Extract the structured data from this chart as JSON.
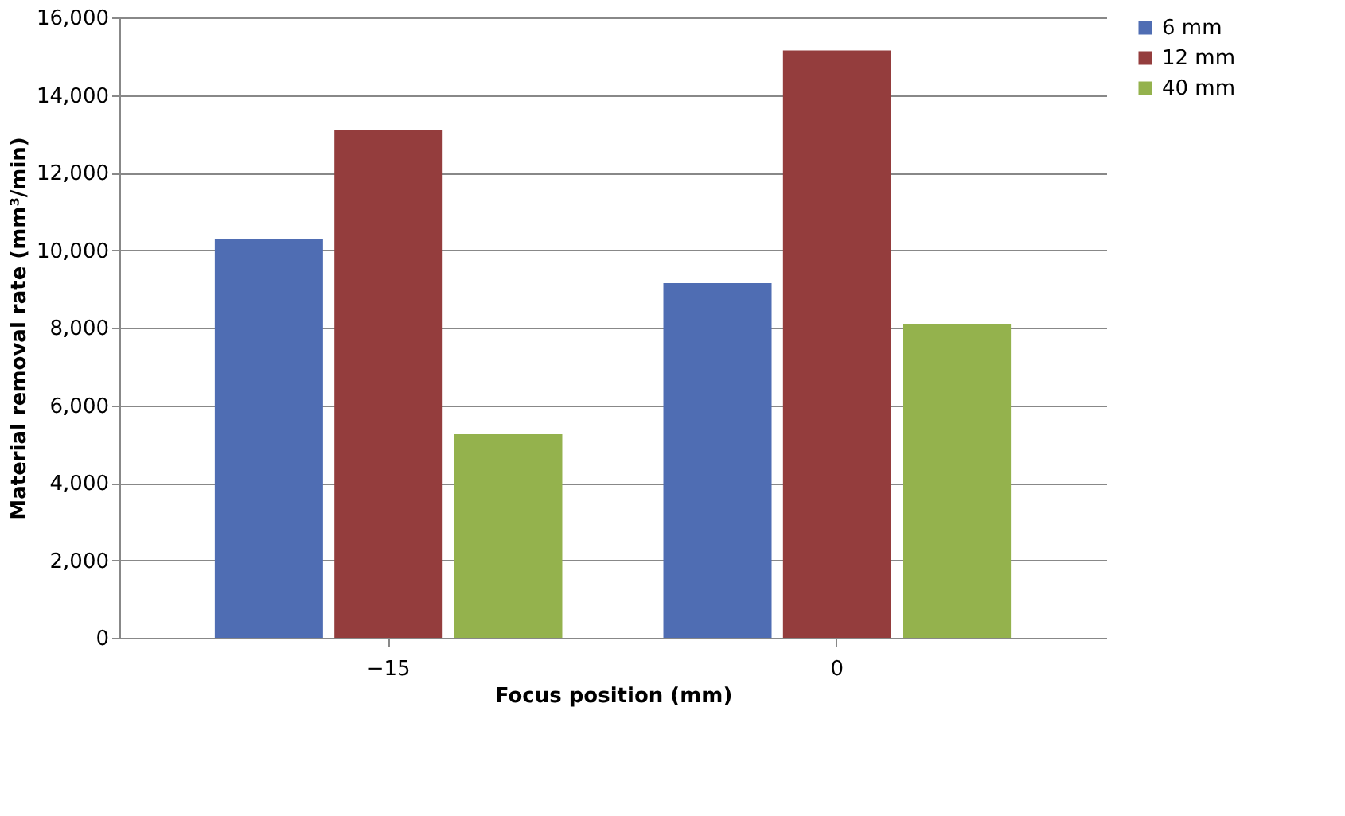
{
  "chart_data": {
    "type": "bar",
    "xlabel": "Focus position (mm)",
    "ylabel": "Material removal rate (mm³/min)",
    "categories": [
      "−15",
      "0"
    ],
    "series": [
      {
        "name": "6 mm",
        "color": "#4f6db3",
        "values": [
          10300,
          9150
        ]
      },
      {
        "name": "12 mm",
        "color": "#943d3d",
        "values": [
          13100,
          15150
        ]
      },
      {
        "name": "40 mm",
        "color": "#94b24d",
        "values": [
          5250,
          8100
        ]
      }
    ],
    "ylim": [
      0,
      16000
    ],
    "yticks": [
      {
        "value": 0,
        "label": "0"
      },
      {
        "value": 2000,
        "label": "2,000"
      },
      {
        "value": 4000,
        "label": "4,000"
      },
      {
        "value": 6000,
        "label": "6,000"
      },
      {
        "value": 8000,
        "label": "8,000"
      },
      {
        "value": 10000,
        "label": "10,000"
      },
      {
        "value": 12000,
        "label": "12,000"
      },
      {
        "value": 14000,
        "label": "14,000"
      },
      {
        "value": 16000,
        "label": "16,000"
      }
    ],
    "grid": "y",
    "legend": "right"
  }
}
